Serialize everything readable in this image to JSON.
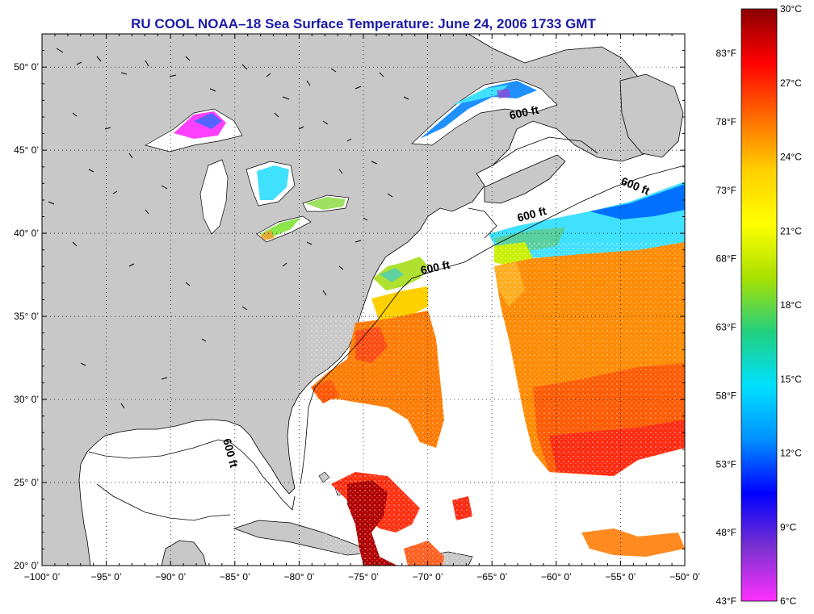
{
  "title": "RU COOL  NOAA–18  Sea Surface Temperature:  June 24, 2006 1733 GMT",
  "map": {
    "lon_range": [
      -100,
      -50
    ],
    "lat_range": [
      20,
      52
    ],
    "lat_ticks": [
      {
        "label": "20° 0’",
        "value": 20
      },
      {
        "label": "25° 0’",
        "value": 25
      },
      {
        "label": "30° 0’",
        "value": 30
      },
      {
        "label": "35° 0’",
        "value": 35
      },
      {
        "label": "40° 0’",
        "value": 40
      },
      {
        "label": "45° 0’",
        "value": 45
      },
      {
        "label": "50° 0’",
        "value": 50
      }
    ],
    "lon_ticks": [
      {
        "label": "−100° 0’",
        "value": -100
      },
      {
        "label": "−95° 0’",
        "value": -95
      },
      {
        "label": "−90° 0’",
        "value": -90
      },
      {
        "label": "−85° 0’",
        "value": -85
      },
      {
        "label": "−80° 0’",
        "value": -80
      },
      {
        "label": "−75° 0’",
        "value": -75
      },
      {
        "label": "−70° 0’",
        "value": -70
      },
      {
        "label": "−65° 0’",
        "value": -65
      },
      {
        "label": "−60° 0’",
        "value": -60
      },
      {
        "label": "−55° 0’",
        "value": -55
      },
      {
        "label": "−50° 0’",
        "value": -50
      }
    ],
    "isobath_labels": [
      "600 ft",
      "600 ft",
      "600 ft",
      "600 ft",
      "600 ft"
    ],
    "colors": {
      "land": "#c8c8c8",
      "ocean": "#ffffff",
      "title": "#1a1aa6"
    }
  },
  "colorbar": {
    "celsius_labels": [
      "30°C",
      "27°C",
      "24°C",
      "21°C",
      "18°C",
      "15°C",
      "12°C",
      "9°C",
      "6°C"
    ],
    "fahrenheit_labels": [
      "83°F",
      "78°F",
      "73°F",
      "68°F",
      "63°F",
      "58°F",
      "53°F",
      "48°F",
      "43°F"
    ],
    "gradient_stops_top_to_bottom": [
      "#8b0000",
      "#ff0000",
      "#ff6a00",
      "#ffd000",
      "#ffff00",
      "#a8e000",
      "#22d080",
      "#00e0ff",
      "#0090ff",
      "#0000ff",
      "#7a30d0",
      "#ff30ff"
    ]
  }
}
